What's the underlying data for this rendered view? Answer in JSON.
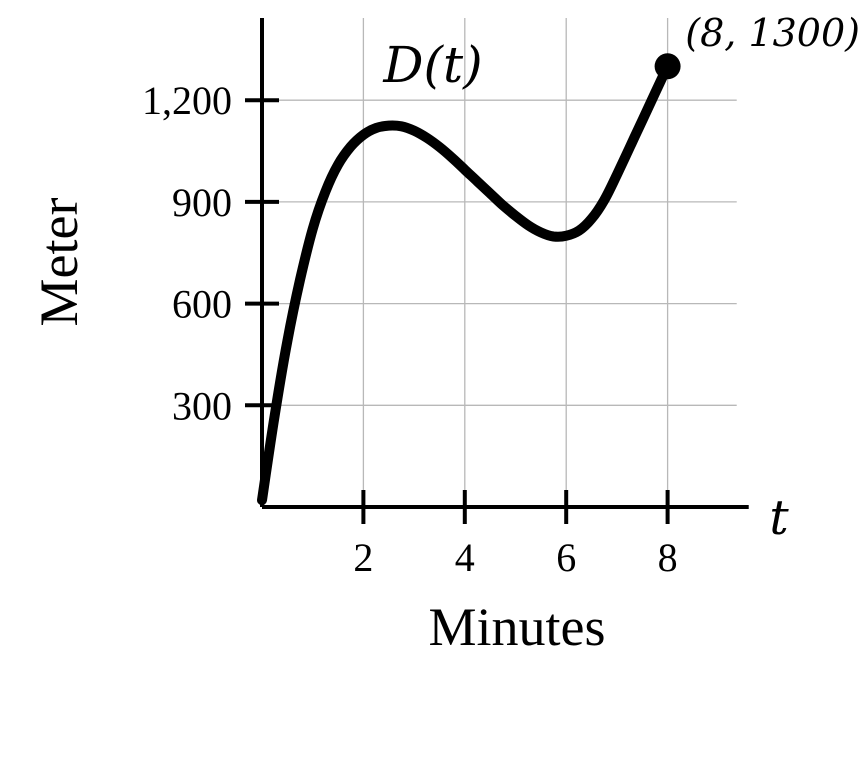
{
  "chart_data": {
    "type": "line",
    "title": "",
    "curve_label": "D(t)",
    "xlabel": "Minutes",
    "ylabel": "Meter",
    "x_axis_variable": "t",
    "xlim": [
      0,
      9.6
    ],
    "ylim": [
      0,
      1450
    ],
    "x_ticks": [
      {
        "value": 2,
        "label": "2"
      },
      {
        "value": 4,
        "label": "4"
      },
      {
        "value": 6,
        "label": "6"
      },
      {
        "value": 8,
        "label": "8"
      }
    ],
    "y_ticks": [
      {
        "value": 300,
        "label": "300"
      },
      {
        "value": 600,
        "label": "600"
      },
      {
        "value": 900,
        "label": "900"
      },
      {
        "value": 1200,
        "label": "1,200"
      }
    ],
    "grid": true,
    "series": [
      {
        "name": "D(t)",
        "x": [
          0,
          0.25,
          0.5,
          0.75,
          1,
          1.25,
          1.5,
          1.75,
          2,
          2.25,
          2.5,
          2.75,
          3,
          3.25,
          3.5,
          3.75,
          4,
          4.25,
          4.5,
          4.75,
          5,
          5.25,
          5.5,
          5.75,
          6,
          6.25,
          6.5,
          6.75,
          7,
          7.25,
          7.5,
          7.75,
          8
        ],
        "y": [
          20,
          270,
          490,
          670,
          820,
          930,
          1010,
          1063,
          1098,
          1118,
          1125,
          1123,
          1110,
          1089,
          1062,
          1030,
          995,
          960,
          925,
          890,
          859,
          831,
          810,
          798,
          800,
          815,
          850,
          905,
          980,
          1060,
          1140,
          1220,
          1300
        ]
      }
    ],
    "endpoint": {
      "x": 8,
      "y": 1300,
      "label": "(8, 1300)"
    }
  }
}
